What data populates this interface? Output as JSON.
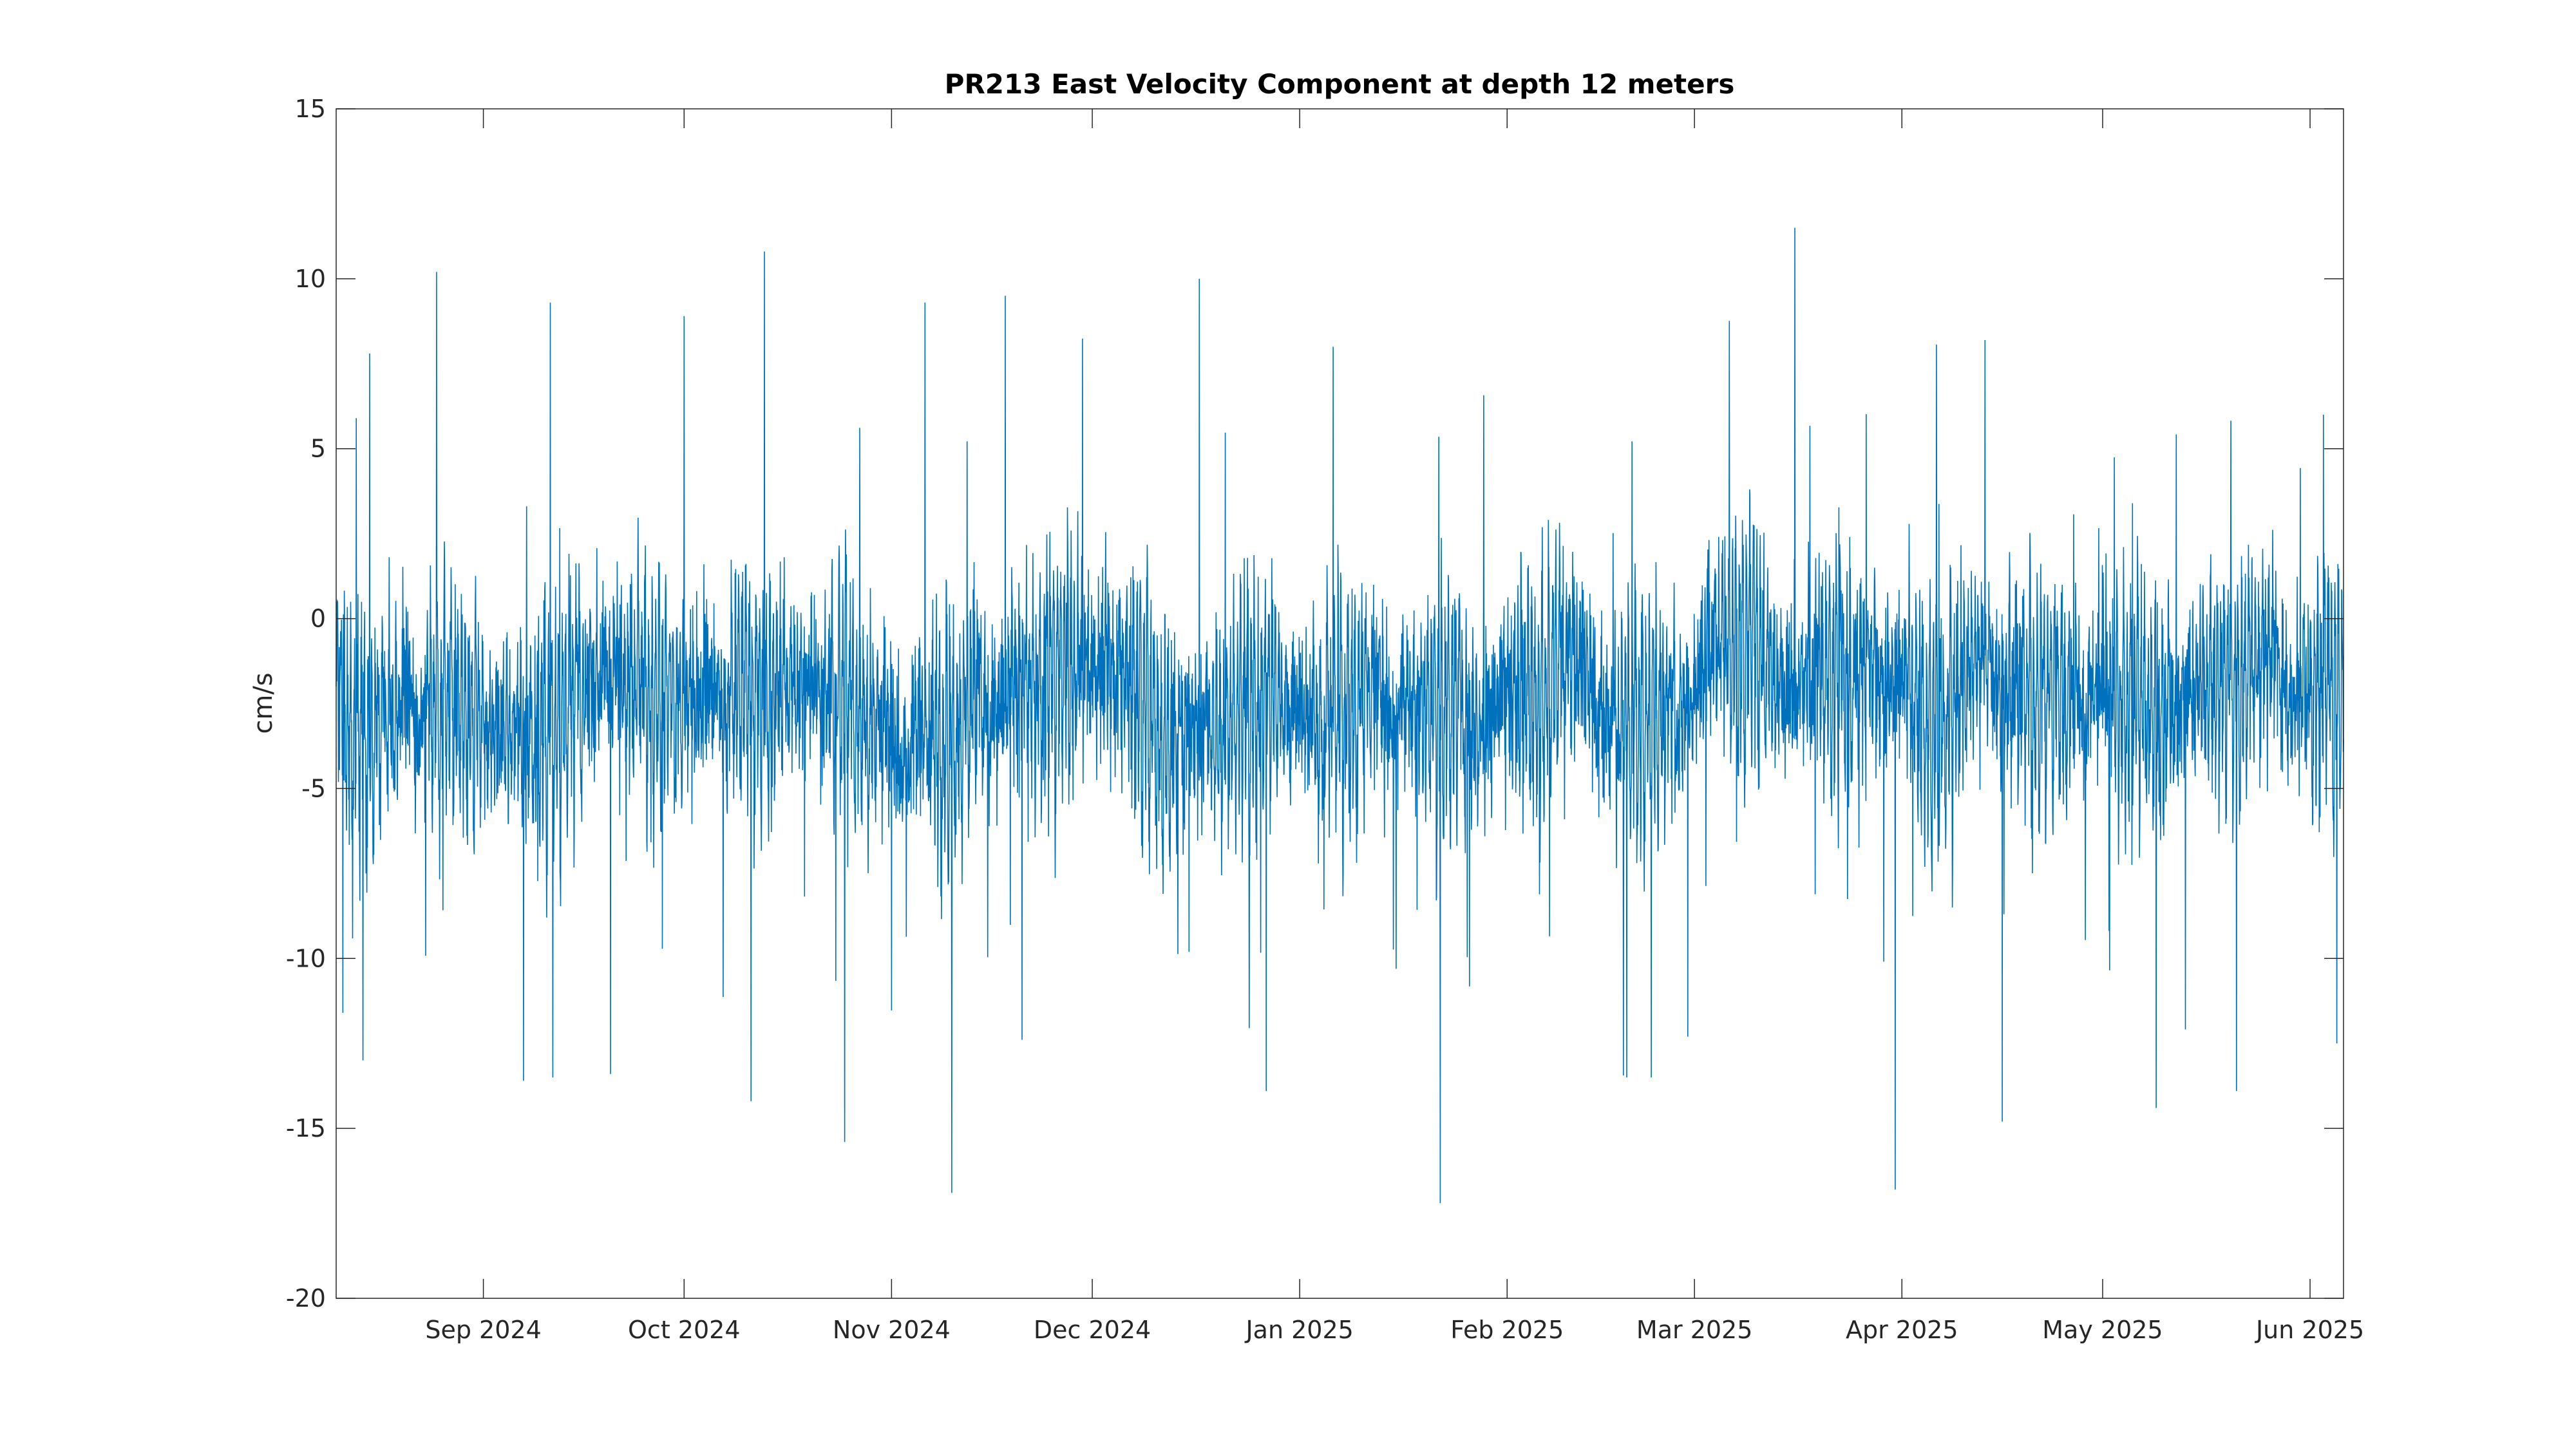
{
  "chart_data": {
    "type": "line",
    "title": "PR213 East Velocity Component at depth 12 meters",
    "xlabel": "",
    "ylabel": "cm/s",
    "x_type": "date",
    "x_range": [
      "2024-08-10",
      "2025-06-06"
    ],
    "ylim": [
      -20,
      15
    ],
    "y_ticks": [
      15,
      10,
      5,
      0,
      -5,
      -10,
      -15,
      -20
    ],
    "x_ticks": [
      {
        "date": "2024-09-01",
        "label": "Sep 2024"
      },
      {
        "date": "2024-10-01",
        "label": "Oct 2024"
      },
      {
        "date": "2024-11-01",
        "label": "Nov 2024"
      },
      {
        "date": "2024-12-01",
        "label": "Dec 2024"
      },
      {
        "date": "2025-01-01",
        "label": "Jan 2025"
      },
      {
        "date": "2025-02-01",
        "label": "Feb 2025"
      },
      {
        "date": "2025-03-01",
        "label": "Mar 2025"
      },
      {
        "date": "2025-04-01",
        "label": "Apr 2025"
      },
      {
        "date": "2025-05-01",
        "label": "May 2025"
      },
      {
        "date": "2025-06-01",
        "label": "Jun 2025"
      }
    ],
    "grid": false,
    "series": [
      {
        "color": "#0072bd",
        "sampling": "hourly",
        "summary": "Dense high-frequency oscillation centered near -2 cm/s, typically between about -9 and 5 cm/s",
        "points": [
          {
            "x": "2024-08-10",
            "y": -2.0
          },
          {
            "x": "2024-08-11",
            "y": -11.6
          },
          {
            "x": "2024-08-13",
            "y": 5.9
          },
          {
            "x": "2024-08-14",
            "y": -13.0
          },
          {
            "x": "2024-08-15",
            "y": 7.8
          },
          {
            "x": "2024-08-25",
            "y": 10.2
          },
          {
            "x": "2024-09-07",
            "y": -13.6
          },
          {
            "x": "2024-09-11",
            "y": 9.3
          },
          {
            "x": "2024-09-20",
            "y": -13.4
          },
          {
            "x": "2024-10-01",
            "y": 8.9
          },
          {
            "x": "2024-10-11",
            "y": -14.2
          },
          {
            "x": "2024-10-13",
            "y": 10.8
          },
          {
            "x": "2024-10-25",
            "y": -15.4
          },
          {
            "x": "2024-11-06",
            "y": 9.3
          },
          {
            "x": "2024-11-10",
            "y": -16.9
          },
          {
            "x": "2024-11-18",
            "y": 9.5
          },
          {
            "x": "2024-12-17",
            "y": 10.0
          },
          {
            "x": "2024-12-27",
            "y": -13.9
          },
          {
            "x": "2025-01-06",
            "y": 8.0
          },
          {
            "x": "2025-01-22",
            "y": -17.2
          },
          {
            "x": "2025-02-28",
            "y": -12.3
          },
          {
            "x": "2025-03-16",
            "y": 11.5
          },
          {
            "x": "2025-03-31",
            "y": -16.8
          },
          {
            "x": "2025-04-16",
            "y": -14.8
          },
          {
            "x": "2025-05-09",
            "y": -14.4
          },
          {
            "x": "2025-05-21",
            "y": -13.9
          },
          {
            "x": "2025-06-03",
            "y": 6.0
          },
          {
            "x": "2025-06-05",
            "y": -12.5
          }
        ]
      }
    ]
  }
}
